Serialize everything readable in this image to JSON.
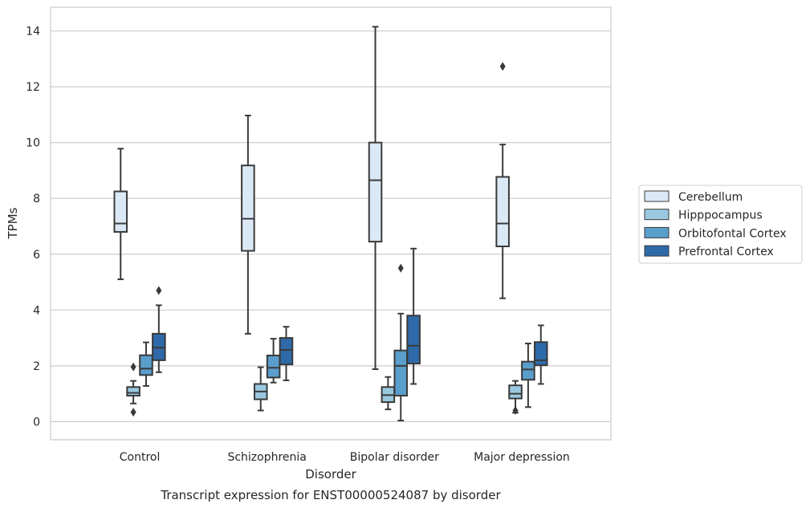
{
  "chart_data": {
    "type": "box",
    "title": "",
    "caption": "Transcript expression for ENST00000524087 by disorder",
    "xlabel": "Disorder",
    "ylabel": "TPMs",
    "ylim": [
      -0.65,
      14.85
    ],
    "yticks": [
      0,
      2,
      4,
      6,
      8,
      10,
      12,
      14
    ],
    "grid": "horizontal",
    "legend_position": "right, outside plot",
    "categories": [
      "Control",
      "Schizophrenia",
      "Bipolar disorder",
      "Major depression"
    ],
    "series": [
      {
        "name": "Cerebellum",
        "color": "#dbe9f6",
        "boxes": [
          {
            "whisker_low": 5.1,
            "q1": 6.8,
            "median": 7.1,
            "q3": 8.25,
            "whisker_high": 9.78,
            "outliers": []
          },
          {
            "whisker_low": 3.15,
            "q1": 6.12,
            "median": 7.27,
            "q3": 9.18,
            "whisker_high": 10.97,
            "outliers": []
          },
          {
            "whisker_low": 1.88,
            "q1": 6.45,
            "median": 8.65,
            "q3": 10.0,
            "whisker_high": 14.15,
            "outliers": []
          },
          {
            "whisker_low": 4.42,
            "q1": 6.28,
            "median": 7.1,
            "q3": 8.77,
            "whisker_high": 9.93,
            "outliers": [
              12.73
            ]
          }
        ]
      },
      {
        "name": "Hipppocampus",
        "color": "#9ac8e0",
        "boxes": [
          {
            "whisker_low": 0.65,
            "q1": 0.93,
            "median": 1.03,
            "q3": 1.24,
            "whisker_high": 1.46,
            "outliers": [
              1.96,
              0.34
            ]
          },
          {
            "whisker_low": 0.4,
            "q1": 0.8,
            "median": 1.08,
            "q3": 1.35,
            "whisker_high": 1.95,
            "outliers": []
          },
          {
            "whisker_low": 0.44,
            "q1": 0.7,
            "median": 0.95,
            "q3": 1.24,
            "whisker_high": 1.6,
            "outliers": []
          },
          {
            "whisker_low": 0.32,
            "q1": 0.83,
            "median": 1.0,
            "q3": 1.3,
            "whisker_high": 1.46,
            "outliers": [
              0.4
            ]
          }
        ]
      },
      {
        "name": "Orbitofontal Cortex",
        "color": "#5a9ecb",
        "boxes": [
          {
            "whisker_low": 1.28,
            "q1": 1.67,
            "median": 1.9,
            "q3": 2.38,
            "whisker_high": 2.84,
            "outliers": []
          },
          {
            "whisker_low": 1.4,
            "q1": 1.58,
            "median": 1.93,
            "q3": 2.37,
            "whisker_high": 2.97,
            "outliers": []
          },
          {
            "whisker_low": 0.04,
            "q1": 0.93,
            "median": 2.0,
            "q3": 2.55,
            "whisker_high": 3.87,
            "outliers": [
              5.5
            ]
          },
          {
            "whisker_low": 0.52,
            "q1": 1.5,
            "median": 1.87,
            "q3": 2.15,
            "whisker_high": 2.8,
            "outliers": []
          }
        ]
      },
      {
        "name": "Prefrontal Cortex",
        "color": "#2e6aa9",
        "boxes": [
          {
            "whisker_low": 1.77,
            "q1": 2.2,
            "median": 2.65,
            "q3": 3.15,
            "whisker_high": 4.17,
            "outliers": [
              4.7
            ]
          },
          {
            "whisker_low": 1.48,
            "q1": 2.05,
            "median": 2.57,
            "q3": 3.0,
            "whisker_high": 3.4,
            "outliers": []
          },
          {
            "whisker_low": 1.35,
            "q1": 2.08,
            "median": 2.72,
            "q3": 3.8,
            "whisker_high": 6.2,
            "outliers": []
          },
          {
            "whisker_low": 1.35,
            "q1": 2.02,
            "median": 2.2,
            "q3": 2.85,
            "whisker_high": 3.45,
            "outliers": []
          }
        ]
      }
    ]
  }
}
